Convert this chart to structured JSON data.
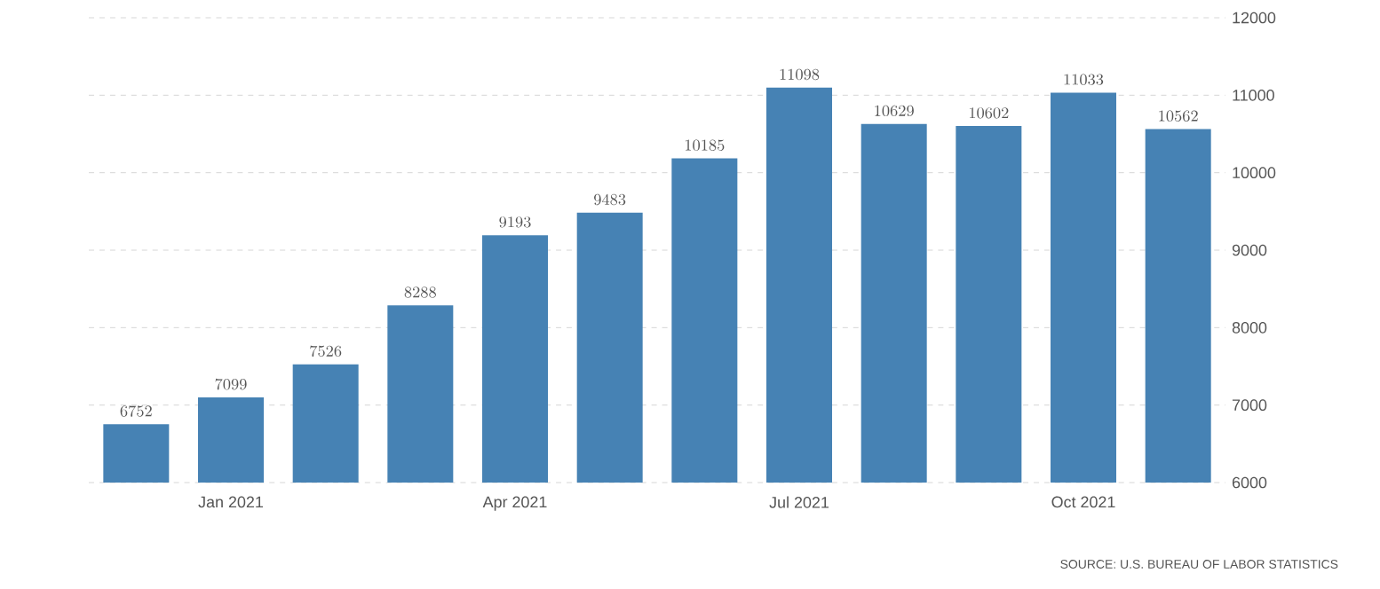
{
  "chart_data": {
    "type": "bar",
    "categories": [
      null,
      "Jan 2021",
      null,
      null,
      "Apr 2021",
      null,
      null,
      "Jul 2021",
      null,
      null,
      "Oct 2021",
      null
    ],
    "values": [
      6752,
      7099,
      7526,
      8288,
      9193,
      9483,
      10185,
      11098,
      10629,
      10602,
      11033,
      10562
    ],
    "color": "#4682b4",
    "ylim": [
      6000,
      12000
    ],
    "yticks": [
      6000,
      7000,
      8000,
      9000,
      10000,
      11000,
      12000
    ],
    "grid": "y",
    "data_labels": true,
    "annotations": [
      "SOURCE: U.S. BUREAU OF LABOR STATISTICS"
    ]
  }
}
